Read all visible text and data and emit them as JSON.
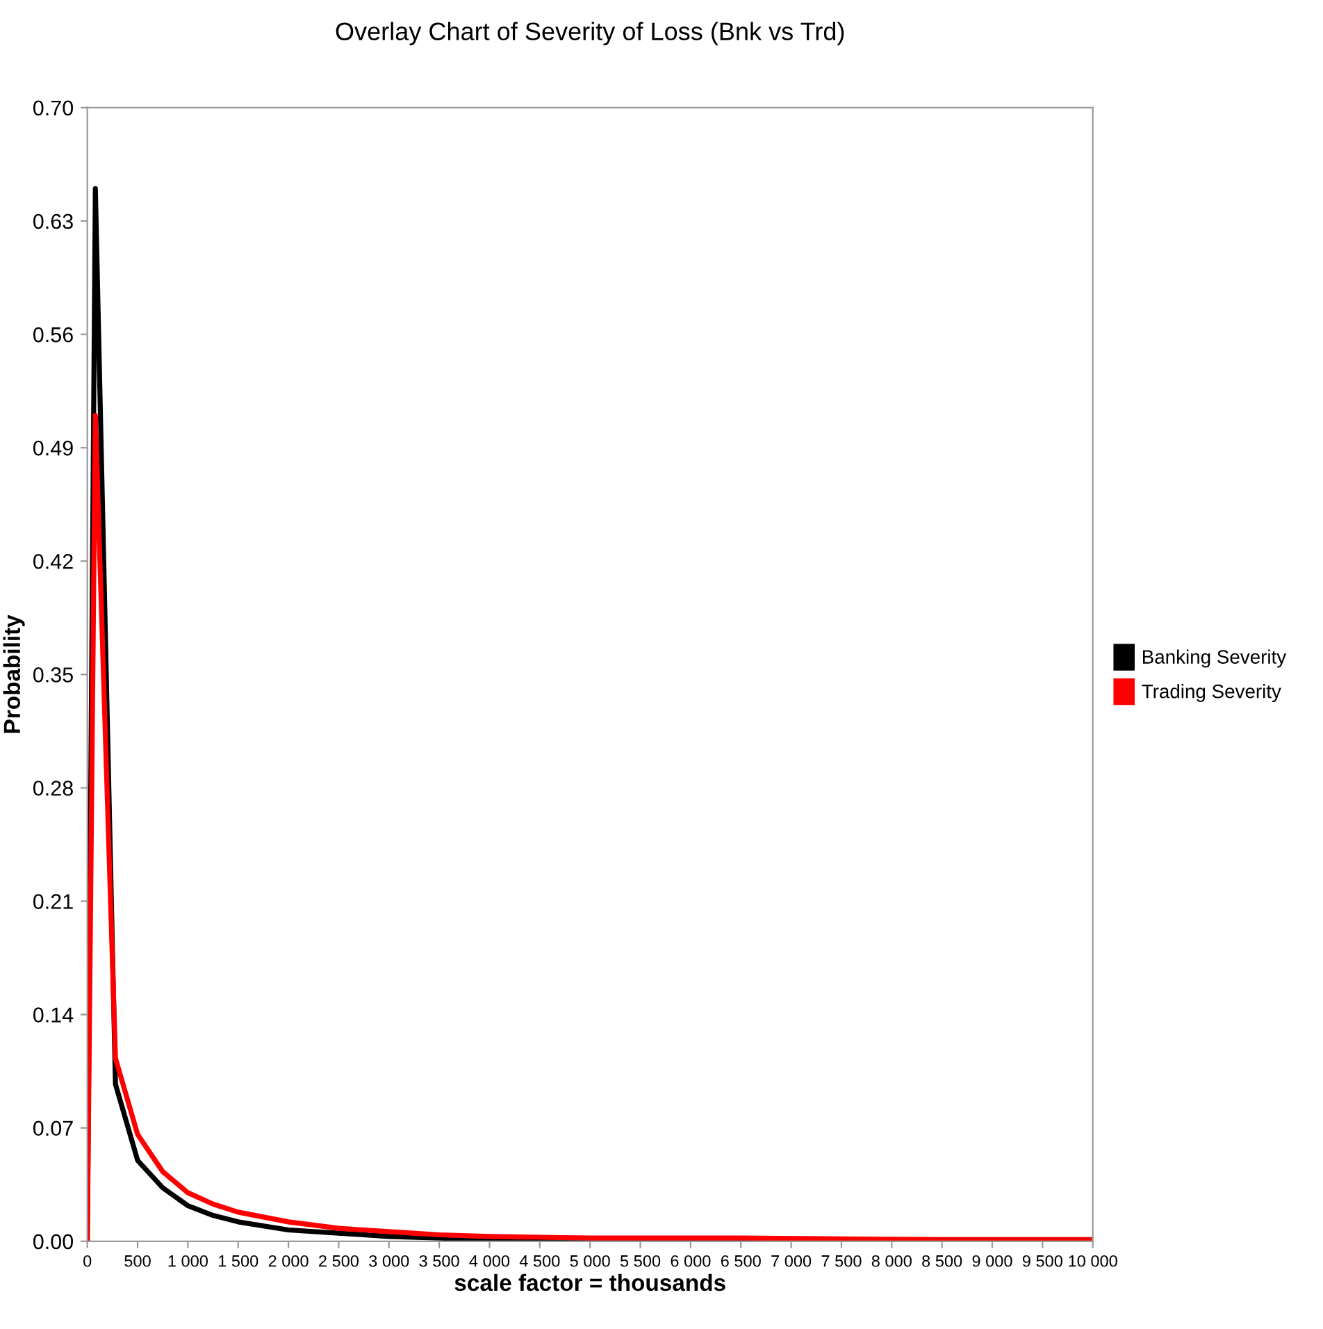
{
  "chart_data": {
    "type": "line",
    "title": "Overlay Chart of Severity of Loss (Bnk vs Trd)",
    "xlabel": "scale factor = thousands",
    "ylabel": "Probability",
    "series": [
      {
        "name": "Banking Severity",
        "color": "#000000",
        "x": [
          0,
          80,
          280,
          500,
          750,
          1000,
          1250,
          1500,
          2000,
          2500,
          3000,
          3500,
          4000,
          6500,
          10000
        ],
        "values": [
          0,
          0.65,
          0.097,
          0.05,
          0.033,
          0.022,
          0.016,
          0.012,
          0.007,
          0.005,
          0.003,
          0.002,
          0.001,
          0,
          0
        ]
      },
      {
        "name": "Trading Severity",
        "color": "#ff0000",
        "x": [
          0,
          80,
          280,
          500,
          750,
          1000,
          1250,
          1500,
          2000,
          2500,
          3000,
          3500,
          4000,
          5000,
          6500,
          8500,
          10000
        ],
        "values": [
          0,
          0.51,
          0.113,
          0.066,
          0.043,
          0.03,
          0.023,
          0.018,
          0.012,
          0.008,
          0.006,
          0.004,
          0.003,
          0.002,
          0.002,
          0.001,
          0.001
        ]
      }
    ],
    "xlim": [
      0,
      10000
    ],
    "xticks": [
      0,
      500,
      {
        "value": 1000,
        "label": "1 000"
      },
      {
        "value": 1500,
        "label": "1 500"
      },
      {
        "value": 2000,
        "label": "2 000"
      },
      {
        "value": 2500,
        "label": "2 500"
      },
      {
        "value": 3000,
        "label": "3 000"
      },
      {
        "value": 3500,
        "label": "3 500"
      },
      {
        "value": 4000,
        "label": "4 000"
      },
      {
        "value": 4500,
        "label": "4 500"
      },
      {
        "value": 5000,
        "label": "5 000"
      },
      {
        "value": 5500,
        "label": "5 500"
      },
      {
        "value": 6000,
        "label": "6 000"
      },
      {
        "value": 6500,
        "label": "6 500"
      },
      {
        "value": 7000,
        "label": "7 000"
      },
      {
        "value": 7500,
        "label": "7 500"
      },
      {
        "value": 8000,
        "label": "8 000"
      },
      {
        "value": 8500,
        "label": "8 500"
      },
      {
        "value": 9000,
        "label": "9 000"
      },
      {
        "value": 9500,
        "label": "9 500"
      },
      {
        "value": 10000,
        "label": "10 000"
      }
    ],
    "ylim": [
      0,
      0.7
    ],
    "yticks": [
      {
        "value": 0,
        "label": "0.00"
      },
      {
        "value": 0.07,
        "label": "0.07"
      },
      {
        "value": 0.14,
        "label": "0.14"
      },
      {
        "value": 0.21,
        "label": "0.21"
      },
      {
        "value": 0.28,
        "label": "0.28"
      },
      {
        "value": 0.35,
        "label": "0.35"
      },
      {
        "value": 0.42,
        "label": "0.42"
      },
      {
        "value": 0.49,
        "label": "0.49"
      },
      {
        "value": 0.56,
        "label": "0.56"
      },
      {
        "value": 0.63,
        "label": "0.63"
      },
      {
        "value": 0.7,
        "label": "0.70"
      }
    ],
    "grid": false,
    "legend": "right",
    "marker": "none",
    "line_style": "solid"
  }
}
